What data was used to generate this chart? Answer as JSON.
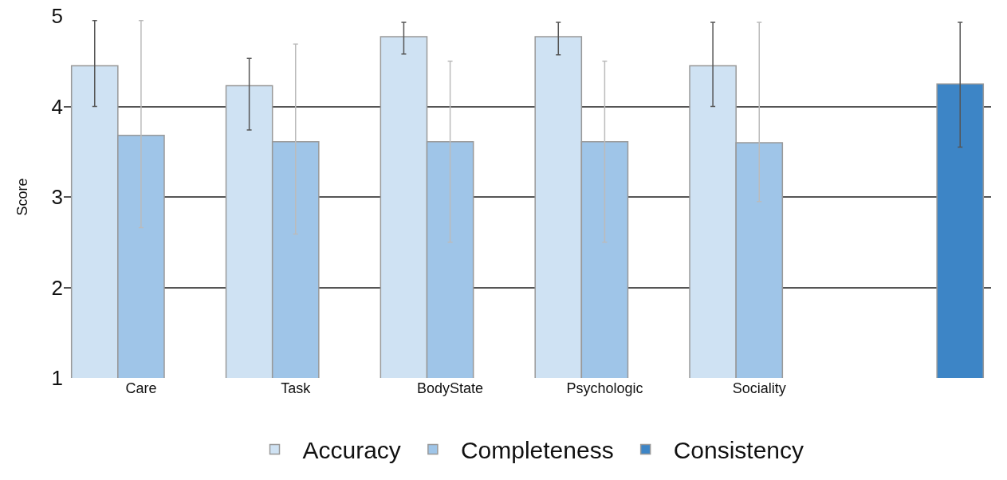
{
  "chart_data": {
    "type": "bar",
    "ylabel": "Score",
    "categories": [
      "Care",
      "Task",
      "BodyState",
      "Psychologic",
      "Sociality",
      null
    ],
    "series": [
      {
        "name": "Accuracy",
        "color": "#cfe2f3",
        "values": [
          4.45,
          4.23,
          4.77,
          4.77,
          4.45,
          null
        ],
        "errors": [
          [
            4.0,
            4.95
          ],
          [
            3.74,
            4.53
          ],
          [
            4.58,
            4.93
          ],
          [
            4.57,
            4.93
          ],
          [
            4.0,
            4.93
          ],
          null
        ]
      },
      {
        "name": "Completeness",
        "color": "#9fc5e8",
        "values": [
          3.68,
          3.61,
          3.61,
          3.61,
          3.6,
          null
        ],
        "errors": [
          [
            2.66,
            4.95
          ],
          [
            2.59,
            4.69
          ],
          [
            2.5,
            4.5
          ],
          [
            2.5,
            4.5
          ],
          [
            2.95,
            4.93
          ],
          null
        ]
      },
      {
        "name": "Consistency",
        "color": "#3d85c6",
        "values": [
          null,
          null,
          null,
          null,
          null,
          4.25
        ],
        "errors": [
          null,
          null,
          null,
          null,
          null,
          [
            3.55,
            4.93
          ]
        ]
      }
    ],
    "ylim": [
      1,
      5
    ],
    "yticks": [
      1,
      2,
      3,
      4,
      5
    ],
    "grid": "y",
    "legend": "bottom"
  }
}
